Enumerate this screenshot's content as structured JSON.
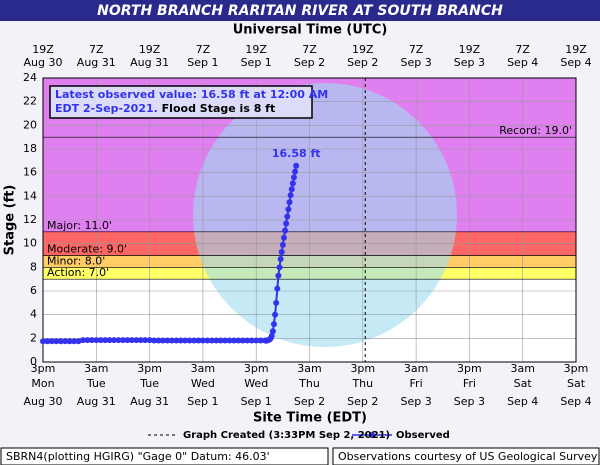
{
  "chart_data": {
    "type": "line",
    "title": "NORTH BRANCH RARITAN RIVER AT SOUTH BRANCH",
    "x2_axis_label": "Universal Time (UTC)",
    "x_axis_label": "Site Time (EDT)",
    "y_axis_label": "Stage (ft)",
    "info_text": [
      "Latest observed value: 16.58 ft at 12:00 AM",
      "EDT 2-Sep-2021.",
      "Flood Stage is 8 ft"
    ],
    "annotation_label": "16.58 ft",
    "graph_created": {
      "label": "Graph Created (3:33PM Sep 2, 2021)",
      "x": 72.55
    },
    "footer_left": "SBRN4(plotting HGIRG) \"Gage 0\" Datum: 46.03'",
    "footer_right": "Observations courtesy of US Geological Survey",
    "xlim": [
      0,
      120
    ],
    "ylim": [
      0,
      24
    ],
    "yticks": [
      0,
      2,
      4,
      6,
      8,
      10,
      12,
      14,
      16,
      18,
      20,
      22,
      24
    ],
    "xticks": [
      {
        "value": 0,
        "label": "3pm"
      },
      {
        "value": 12,
        "label": "3am"
      },
      {
        "value": 24,
        "label": "3pm"
      },
      {
        "value": 36,
        "label": "3am"
      },
      {
        "value": 48,
        "label": "3pm"
      },
      {
        "value": 60,
        "label": "3am"
      },
      {
        "value": 72,
        "label": "3pm"
      },
      {
        "value": 84,
        "label": "3am"
      },
      {
        "value": 96,
        "label": "3pm"
      },
      {
        "value": 108,
        "label": "3am"
      },
      {
        "value": 120,
        "label": "3pm"
      }
    ],
    "xtick_weekdays": [
      "Mon",
      "Tue",
      "Tue",
      "Wed",
      "Wed",
      "Thu",
      "Thu",
      "Fri",
      "Fri",
      "Sat",
      "Sat"
    ],
    "xtick_dates": [
      "Aug 30",
      "Aug 31",
      "Aug 31",
      "Sep 1",
      "Sep 1",
      "Sep 2",
      "Sep 2",
      "Sep 3",
      "Sep 3",
      "Sep 4",
      "Sep 4"
    ],
    "x2tick_labels": [
      "19Z",
      "7Z",
      "19Z",
      "7Z",
      "19Z",
      "7Z",
      "19Z",
      "7Z",
      "19Z",
      "7Z",
      "19Z"
    ],
    "x2tick_dates": [
      "Aug 30",
      "Aug 31",
      "Aug 31",
      "Sep 1",
      "Sep 1",
      "Sep 2",
      "Sep 2",
      "Sep 3",
      "Sep 3",
      "Sep 4",
      "Sep 4"
    ],
    "grid": true,
    "bands": [
      {
        "name": "Action",
        "label": "Action: 7.0'",
        "from": 7,
        "to": 8,
        "color": "#ffff66"
      },
      {
        "name": "Minor",
        "label": "Minor: 8.0'",
        "from": 8,
        "to": 9,
        "color": "#ffcc66"
      },
      {
        "name": "Moderate",
        "label": "Moderate: 9.0'",
        "from": 9,
        "to": 11,
        "color": "#ff6666"
      },
      {
        "name": "Major",
        "label": "Major: 11.0'",
        "from": 11,
        "to": 24,
        "color": "#e080f0"
      }
    ],
    "record": {
      "label": "Record: 19.0'",
      "value": 19
    },
    "series": [
      {
        "name": "Observed",
        "color": "#3333ee",
        "x": [
          0,
          1,
          2,
          3,
          4,
          5,
          6,
          7,
          8,
          9,
          10,
          11,
          12,
          13,
          14,
          15,
          16,
          17,
          18,
          19,
          20,
          21,
          22,
          23,
          24,
          25,
          26,
          27,
          28,
          29,
          30,
          31,
          32,
          33,
          34,
          35,
          36,
          37,
          38,
          39,
          40,
          41,
          42,
          43,
          44,
          45,
          46,
          47,
          48,
          49,
          50,
          50.25,
          50.5,
          50.75,
          51,
          51.25,
          51.5,
          51.75,
          52,
          52.25,
          52.5,
          52.75,
          53,
          53.25,
          53.5,
          53.75,
          54,
          54.25,
          54.5,
          54.75,
          55,
          55.25,
          55.5,
          55.75,
          56,
          56.25,
          56.5,
          56.75,
          57
        ],
        "values": [
          1.75,
          1.75,
          1.75,
          1.75,
          1.75,
          1.75,
          1.75,
          1.75,
          1.75,
          1.85,
          1.85,
          1.85,
          1.85,
          1.85,
          1.85,
          1.85,
          1.85,
          1.85,
          1.85,
          1.85,
          1.85,
          1.85,
          1.85,
          1.85,
          1.85,
          1.82,
          1.82,
          1.82,
          1.82,
          1.82,
          1.82,
          1.82,
          1.82,
          1.82,
          1.82,
          1.82,
          1.82,
          1.82,
          1.82,
          1.82,
          1.82,
          1.82,
          1.82,
          1.82,
          1.82,
          1.82,
          1.82,
          1.82,
          1.82,
          1.82,
          1.82,
          1.8,
          1.82,
          1.85,
          1.9,
          2.0,
          2.2,
          2.6,
          3.2,
          4.0,
          5.0,
          6.2,
          7.3,
          8.0,
          8.7,
          9.3,
          9.9,
          10.5,
          11.1,
          11.7,
          12.3,
          12.9,
          13.5,
          14.1,
          14.6,
          15.1,
          15.6,
          16.1,
          16.58
        ]
      }
    ]
  }
}
